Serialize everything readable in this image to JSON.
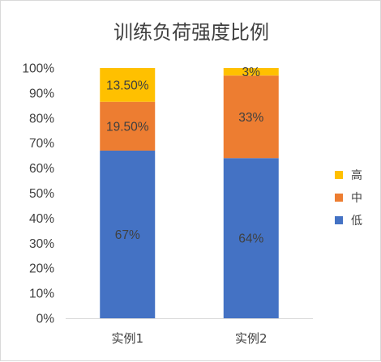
{
  "chart_data": {
    "type": "bar",
    "stacked": true,
    "title": "训练负荷强度比例",
    "categories": [
      "实例1",
      "实例2"
    ],
    "series": [
      {
        "name": "低",
        "color": "#4472C4",
        "values": [
          67,
          64
        ],
        "labels": [
          "67%",
          "64%"
        ]
      },
      {
        "name": "中",
        "color": "#ED7D31",
        "values": [
          19.5,
          33
        ],
        "labels": [
          "19.50%",
          "33%"
        ]
      },
      {
        "name": "高",
        "color": "#FFC000",
        "values": [
          13.5,
          3
        ],
        "labels": [
          "13.50%",
          "3%"
        ]
      }
    ],
    "ylim": [
      0,
      100
    ],
    "yticks": [
      0,
      10,
      20,
      30,
      40,
      50,
      60,
      70,
      80,
      90,
      100
    ],
    "ytick_labels": [
      "0%",
      "10%",
      "20%",
      "30%",
      "40%",
      "50%",
      "60%",
      "70%",
      "80%",
      "90%",
      "100%"
    ],
    "grid": false,
    "legend_position": "right",
    "legend_order": [
      "高",
      "中",
      "低"
    ]
  }
}
